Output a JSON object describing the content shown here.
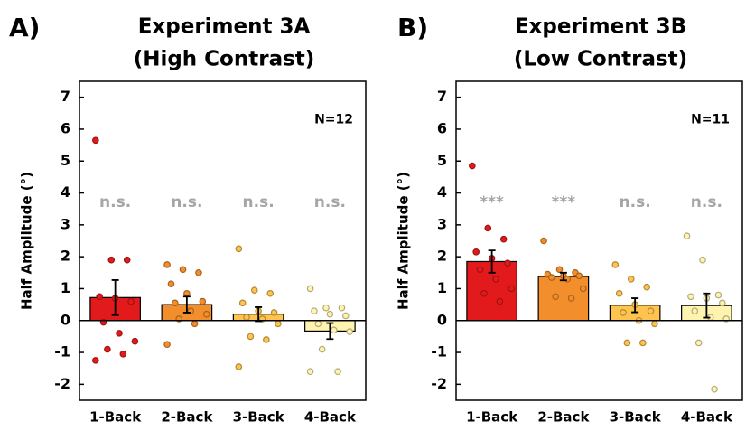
{
  "chart_data": [
    {
      "type": "bar",
      "panel_label": "A)",
      "title": [
        "Experiment 3A",
        "(High Contrast)"
      ],
      "ylabel": "Half Amplitude (°)",
      "categories": [
        "1-Back",
        "2-Back",
        "3-Back",
        "4-Back"
      ],
      "values": [
        0.72,
        0.5,
        0.2,
        -0.33
      ],
      "errors": [
        0.55,
        0.25,
        0.22,
        0.25
      ],
      "colors": [
        "#e31a1c",
        "#f28e2b",
        "#fec44f",
        "#fff3b0"
      ],
      "points": [
        [
          5.65,
          1.9,
          1.9,
          0.75,
          0.7,
          0.6,
          -0.05,
          -0.4,
          -0.65,
          -0.9,
          -1.05,
          -1.25
        ],
        [
          1.75,
          1.6,
          1.5,
          1.15,
          0.85,
          0.6,
          0.55,
          0.3,
          0.2,
          0.05,
          -0.1,
          -0.75
        ],
        [
          2.25,
          0.95,
          0.85,
          0.55,
          0.3,
          0.25,
          0.1,
          0.05,
          -0.1,
          -0.5,
          -0.6,
          -1.45
        ],
        [
          1.0,
          0.4,
          0.4,
          0.3,
          0.2,
          0.15,
          -0.1,
          -0.3,
          -0.35,
          -0.9,
          -1.6,
          -1.6
        ]
      ],
      "significance": [
        "n.s.",
        "n.s.",
        "n.s.",
        "n.s."
      ],
      "n_label": "N=12",
      "ylim": [
        -2.5,
        7.5
      ],
      "yticks": [
        -2,
        -1,
        0,
        1,
        2,
        3,
        4,
        5,
        6,
        7
      ]
    },
    {
      "type": "bar",
      "panel_label": "B)",
      "title": [
        "Experiment 3B",
        "(Low Contrast)"
      ],
      "ylabel": "Half Amplitude (°)",
      "categories": [
        "1-Back",
        "2-Back",
        "3-Back",
        "4-Back"
      ],
      "values": [
        1.85,
        1.38,
        0.48,
        0.47
      ],
      "errors": [
        0.35,
        0.12,
        0.22,
        0.38
      ],
      "colors": [
        "#e31a1c",
        "#f28e2b",
        "#fec44f",
        "#fff3b0"
      ],
      "points": [
        [
          4.85,
          2.9,
          2.55,
          2.15,
          1.95,
          1.8,
          1.6,
          1.3,
          1.0,
          0.85,
          0.6
        ],
        [
          2.5,
          1.6,
          1.5,
          1.45,
          1.4,
          1.4,
          1.35,
          1.3,
          1.0,
          0.75,
          0.7
        ],
        [
          1.75,
          1.3,
          1.05,
          0.85,
          0.5,
          0.3,
          0.25,
          0.0,
          -0.1,
          -0.7,
          -0.7
        ],
        [
          2.65,
          1.9,
          0.8,
          0.75,
          0.7,
          0.55,
          0.3,
          0.1,
          0.05,
          -0.7,
          -2.15
        ]
      ],
      "significance": [
        "***",
        "***",
        "n.s.",
        "n.s."
      ],
      "n_label": "N=11",
      "ylim": [
        -2.5,
        7.5
      ],
      "yticks": [
        -2,
        -1,
        0,
        1,
        2,
        3,
        4,
        5,
        6,
        7
      ]
    }
  ]
}
